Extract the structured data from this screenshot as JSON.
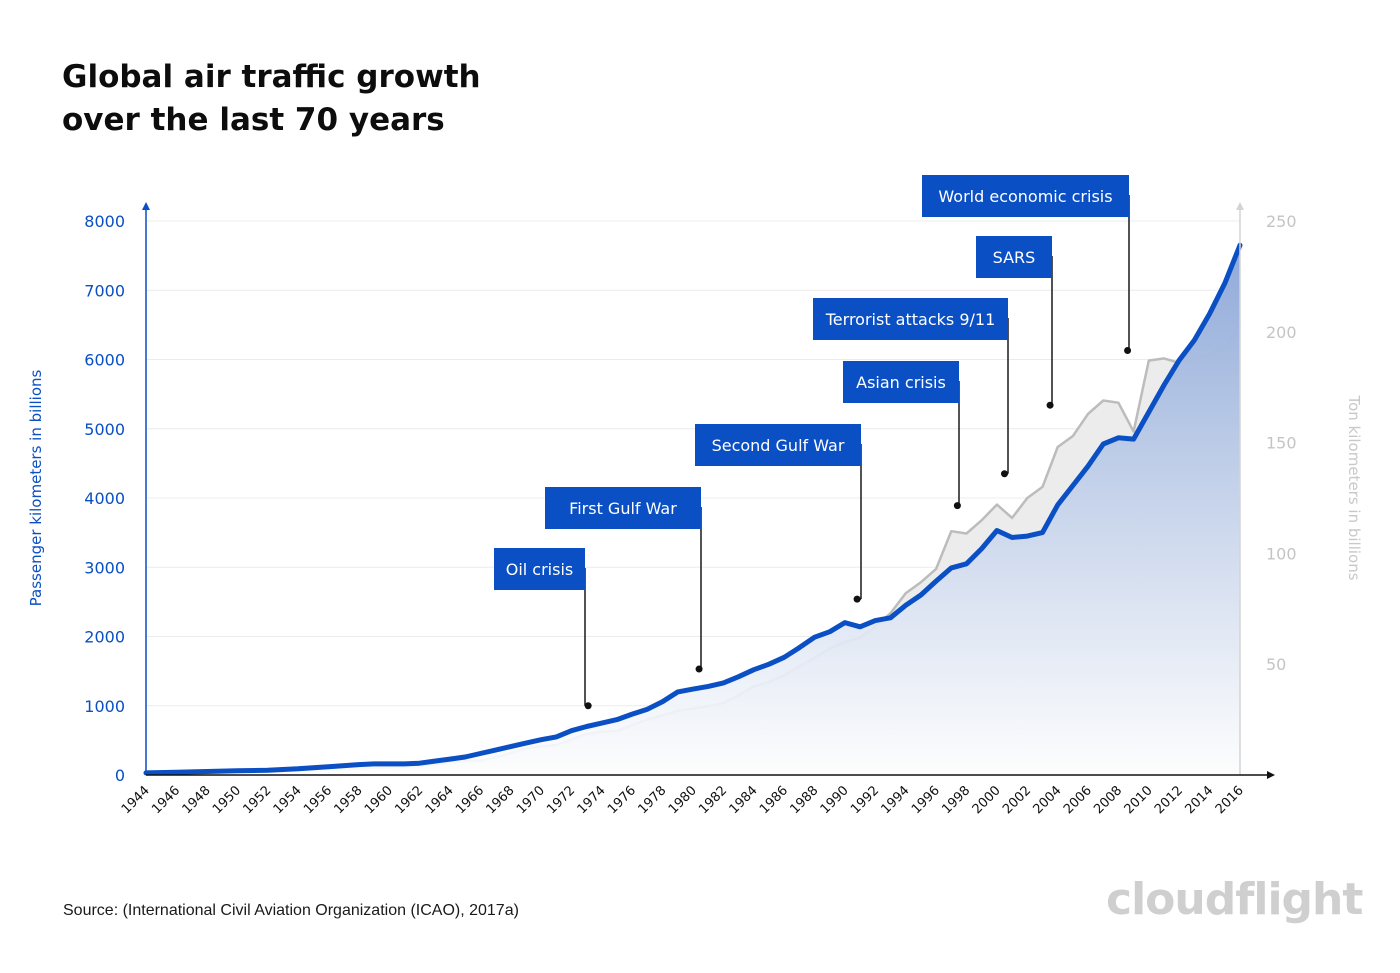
{
  "title": {
    "line1": "Global air traffic growth",
    "line2": "over the last 70 years"
  },
  "source": "Source: (International Civil Aviation Organization (ICAO), 2017a)",
  "brand": {
    "logo_text": "cloudflight"
  },
  "colors": {
    "primary": "#0a4fc4",
    "secondary": "#bcbcbc",
    "secondary_fill": "#ececec",
    "axis_secondary": "#d4d4d4",
    "grid": "#ececec"
  },
  "chart_data": {
    "type": "area",
    "y_left_label": "Passenger kilometers in billions",
    "y_right_label": "Ton kilometers in billions",
    "y_left_range": [
      0,
      8000
    ],
    "y_right_range": [
      0,
      250
    ],
    "y_left_ticks": [
      0,
      1000,
      2000,
      3000,
      4000,
      5000,
      6000,
      7000,
      8000
    ],
    "y_right_ticks": [
      50,
      100,
      150,
      200,
      250
    ],
    "x_tick_labels": [
      "1944",
      "1946",
      "1948",
      "1950",
      "1952",
      "1954",
      "1956",
      "1958",
      "1960",
      "1962",
      "1964",
      "1966",
      "1968",
      "1970",
      "1972",
      "1974",
      "1976",
      "1978",
      "1980",
      "1982",
      "1984",
      "1986",
      "1988",
      "1990",
      "1992",
      "1994",
      "1996",
      "1998",
      "2000",
      "2002",
      "2004",
      "2006",
      "2008",
      "2010",
      "2012",
      "2014",
      "2016"
    ],
    "grid": true,
    "series": [
      {
        "axis": "left",
        "color": "#0a4fc4",
        "x": [
          1944,
          1946,
          1948,
          1950,
          1952,
          1954,
          1956,
          1958,
          1959,
          1960,
          1961,
          1962,
          1963,
          1964,
          1965,
          1966,
          1967,
          1968,
          1969,
          1970,
          1971,
          1972,
          1973,
          1974,
          1975,
          1976,
          1977,
          1978,
          1979,
          1980,
          1981,
          1982,
          1983,
          1984,
          1985,
          1986,
          1987,
          1988,
          1989,
          1990,
          1991,
          1992,
          1993,
          1994,
          1995,
          1996,
          1997,
          1998,
          1999,
          2000,
          2001,
          2002,
          2003,
          2004,
          2005,
          2006,
          2007,
          2008,
          2009,
          2010,
          2011,
          2012,
          2013,
          2014,
          2015,
          2016
        ],
        "values": [
          30,
          40,
          50,
          60,
          70,
          90,
          120,
          150,
          160,
          160,
          160,
          170,
          200,
          230,
          260,
          310,
          360,
          410,
          460,
          510,
          550,
          640,
          700,
          750,
          800,
          880,
          950,
          1060,
          1200,
          1240,
          1280,
          1330,
          1420,
          1520,
          1600,
          1700,
          1840,
          1990,
          2070,
          2200,
          2140,
          2230,
          2270,
          2450,
          2600,
          2800,
          2990,
          3050,
          3270,
          3530,
          3430,
          3450,
          3500,
          3900,
          4180,
          4460,
          4780,
          4870,
          4850,
          5240,
          5630,
          5990,
          6280,
          6660,
          7100,
          7650
        ]
      },
      {
        "axis": "right",
        "color": "#bcbcbc",
        "x": [
          1944,
          1946,
          1948,
          1950,
          1952,
          1954,
          1956,
          1958,
          1960,
          1962,
          1964,
          1965,
          1966,
          1967,
          1968,
          1969,
          1970,
          1971,
          1972,
          1973,
          1974,
          1975,
          1976,
          1977,
          1978,
          1979,
          1980,
          1981,
          1982,
          1983,
          1984,
          1985,
          1986,
          1987,
          1988,
          1989,
          1990,
          1991,
          1992,
          1993,
          1994,
          1995,
          1996,
          1997,
          1998,
          1999,
          2000,
          2001,
          2002,
          2003,
          2004,
          2005,
          2006,
          2007,
          2008,
          2009,
          2010,
          2011,
          2012,
          2013,
          2014,
          2015,
          2016
        ],
        "values": [
          0.5,
          0.8,
          1,
          1.2,
          1.5,
          1.8,
          2.5,
          3,
          3.5,
          4,
          5.5,
          6.5,
          6.5,
          8,
          10,
          12,
          13,
          13.5,
          16,
          18.5,
          19.5,
          20,
          22.5,
          25,
          27,
          29,
          30,
          31,
          32.5,
          36,
          40,
          42,
          45,
          49,
          53,
          57,
          60,
          62,
          67,
          73,
          82,
          87,
          93,
          110,
          109,
          115,
          122,
          116,
          125,
          130,
          148,
          153,
          163,
          169,
          168,
          155,
          187,
          188,
          186,
          187,
          190,
          193,
          203
        ]
      }
    ],
    "annotations": [
      {
        "label": "Oil crisis",
        "x": 1973.1,
        "y": 1000
      },
      {
        "label": "First Gulf War",
        "x": 1980.4,
        "y": 1530
      },
      {
        "label": "Second Gulf War",
        "x": 1990.8,
        "y": 2540
      },
      {
        "label": "Asian crisis",
        "x": 1997.4,
        "y": 3890
      },
      {
        "label": "Terrorist attacks 9/11",
        "x": 2000.5,
        "y": 4350
      },
      {
        "label": "SARS",
        "x": 2003.5,
        "y": 5340
      },
      {
        "label": "World economic crisis",
        "x": 2008.6,
        "y": 6130
      }
    ]
  }
}
